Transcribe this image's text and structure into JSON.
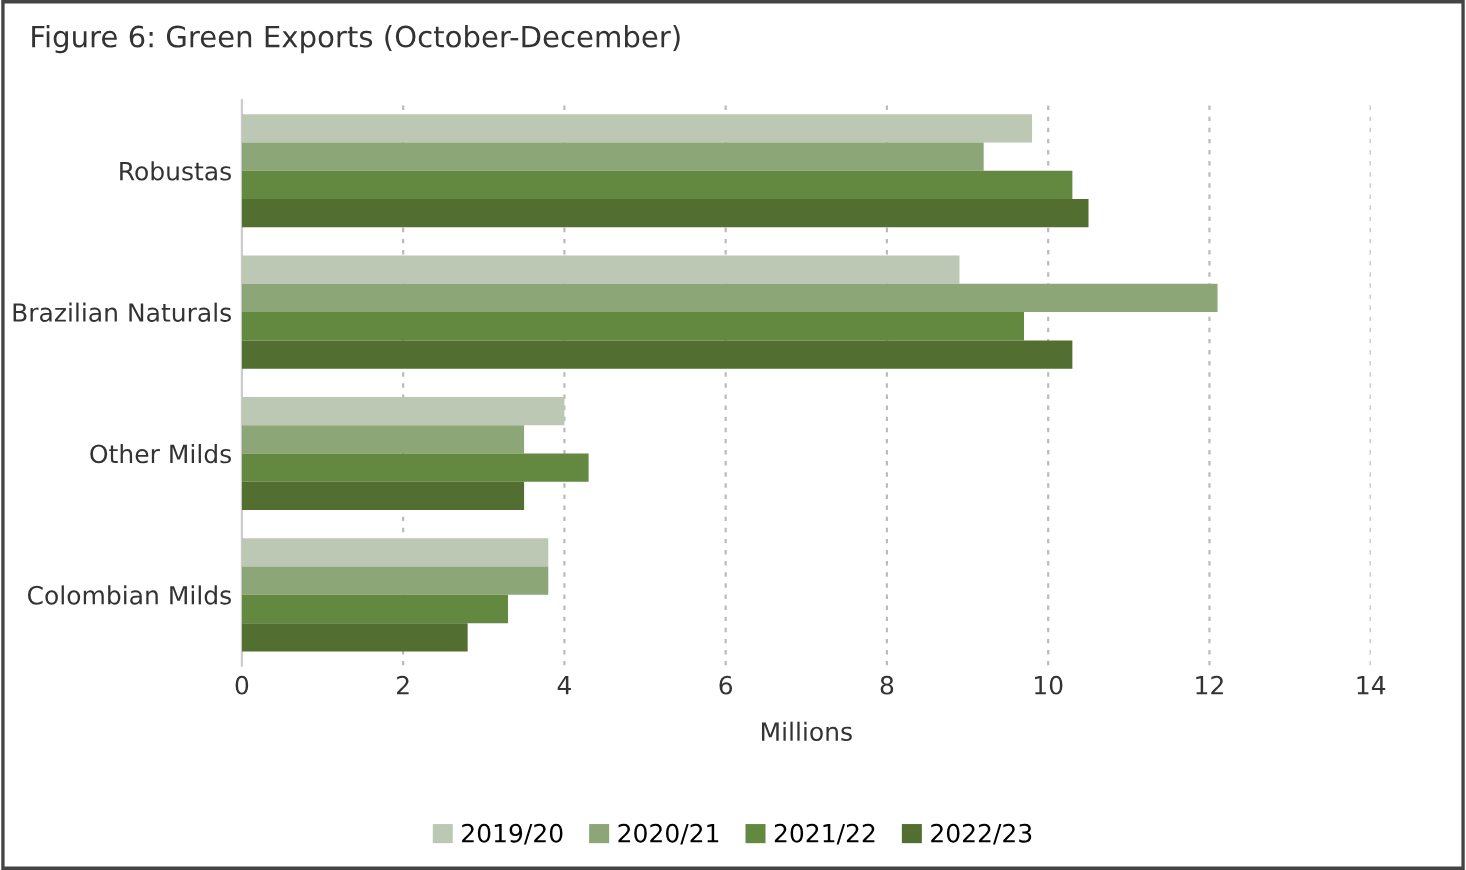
{
  "chart_data": {
    "type": "bar",
    "orientation": "horizontal",
    "title": "Figure 6: Green Exports (October-December)",
    "xlabel": "Millions",
    "categories": [
      "Robustas",
      "Brazilian Naturals",
      "Other Milds",
      "Colombian Milds"
    ],
    "series": [
      {
        "name": "2019/20",
        "color": "#bcc8b4",
        "values": [
          9.8,
          8.9,
          4.0,
          3.8
        ]
      },
      {
        "name": "2020/21",
        "color": "#8ca678",
        "values": [
          9.2,
          12.1,
          3.5,
          3.8
        ]
      },
      {
        "name": "2021/22",
        "color": "#63883f",
        "values": [
          10.3,
          9.7,
          4.3,
          3.3
        ]
      },
      {
        "name": "2022/23",
        "color": "#526e31",
        "values": [
          10.5,
          10.3,
          3.5,
          2.8
        ]
      }
    ],
    "xlim": [
      0,
      14
    ],
    "xticks": [
      0,
      2,
      4,
      6,
      8,
      10,
      12,
      14
    ],
    "grid": "x",
    "legend": "bottom"
  }
}
